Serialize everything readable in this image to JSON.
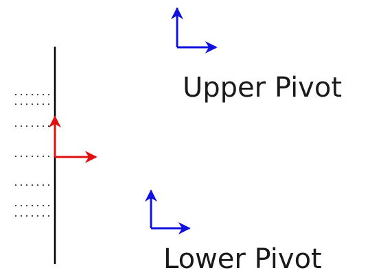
{
  "labels": {
    "upper_pivot": "Upper Pivot",
    "lower_pivot": "Lower Pivot"
  },
  "colors": {
    "pivot_axes": "#1010e0",
    "origin_axes": "#e01010",
    "vertical_line": "#000000",
    "tick_dots": "#444444"
  }
}
